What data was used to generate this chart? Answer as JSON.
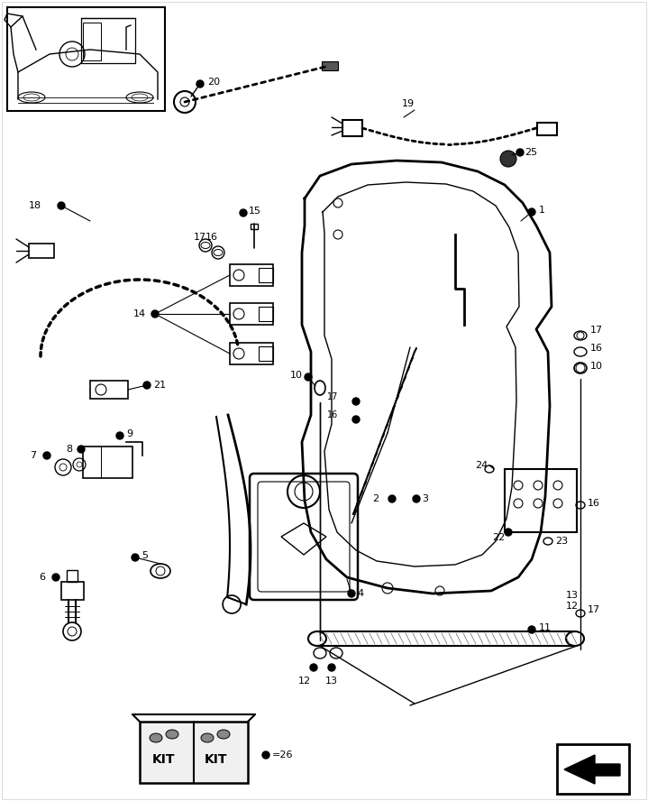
{
  "bg_color": "#ffffff",
  "line_color": "#000000",
  "fig_width": 7.19,
  "fig_height": 8.88,
  "dpi": 100
}
